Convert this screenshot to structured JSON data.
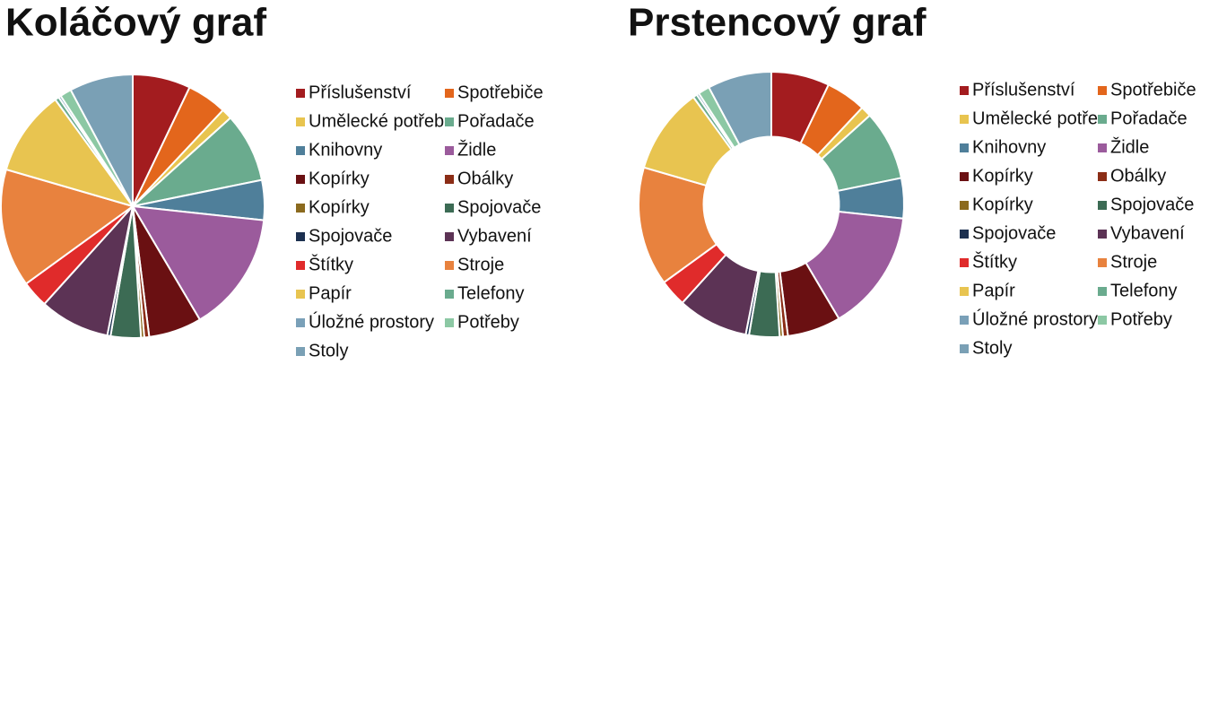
{
  "chart_data": [
    {
      "type": "pie",
      "title": "Koláčový graf",
      "categories": [
        "Příslušenství",
        "Spotřebiče",
        "Umělecké potřeb",
        "Pořadače",
        "Knihovny",
        "Židle",
        "Kopírky",
        "Obálky",
        "Kopírky",
        "Spojovače",
        "Spojovače",
        "Vybavení",
        "Štítky",
        "Stroje",
        "Papír",
        "Telefony",
        "Úložné prostory",
        "Potřeby",
        "Stoly"
      ],
      "values": [
        7.1,
        4.9,
        1.3,
        8.5,
        4.9,
        14.8,
        6.5,
        0.6,
        0.4,
        3.7,
        0.4,
        8.6,
        3.3,
        14.5,
        10.5,
        0.5,
        0.3,
        1.4,
        7.8
      ],
      "colors": [
        "#a31c1f",
        "#e3661c",
        "#e8c44f",
        "#6aab8e",
        "#4f7f9a",
        "#9b5b9c",
        "#6a1012",
        "#8b2d16",
        "#8b6a1e",
        "#3c6b54",
        "#1c3050",
        "#5c3355",
        "#e02b2b",
        "#e8823e",
        "#e8c450",
        "#6aab8e",
        "#7aa0b8",
        "#8cc8a4",
        "#7aa0b5"
      ]
    },
    {
      "type": "donut",
      "title": "Prstencový graf",
      "categories": [
        "Příslušenství",
        "Spotřebiče",
        "Umělecké potře",
        "Pořadače",
        "Knihovny",
        "Židle",
        "Kopírky",
        "Obálky",
        "Kopírky",
        "Spojovače",
        "Spojovače",
        "Vybavení",
        "Štítky",
        "Stroje",
        "Papír",
        "Telefony",
        "Úložné prostory",
        "Potřeby",
        "Stoly"
      ],
      "values": [
        7.1,
        4.9,
        1.3,
        8.5,
        4.9,
        14.8,
        6.5,
        0.6,
        0.4,
        3.7,
        0.4,
        8.6,
        3.3,
        14.5,
        10.5,
        0.5,
        0.3,
        1.4,
        7.8
      ],
      "colors": [
        "#a31c1f",
        "#e3661c",
        "#e8c44f",
        "#6aab8e",
        "#4f7f9a",
        "#9b5b9c",
        "#6a1012",
        "#8b2d16",
        "#8b6a1e",
        "#3c6b54",
        "#1c3050",
        "#5c3355",
        "#e02b2b",
        "#e8823e",
        "#e8c450",
        "#6aab8e",
        "#7aa0b8",
        "#8cc8a4",
        "#7aa0b5"
      ]
    }
  ]
}
